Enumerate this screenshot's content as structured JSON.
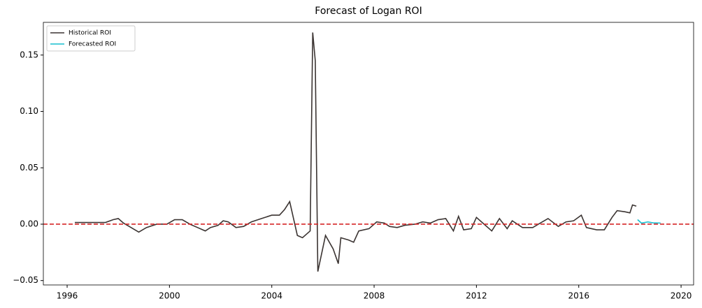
{
  "chart_data": {
    "type": "line",
    "title": "Forecast of Logan ROI",
    "series": [
      {
        "name": "Historical ROI",
        "color": "#3b3432",
        "x": [
          1996.3,
          1997.5,
          1997.8,
          1998.0,
          1998.2,
          1998.5,
          1998.8,
          1999.1,
          1999.5,
          1999.9,
          2000.2,
          2000.5,
          2000.8,
          2001.1,
          2001.4,
          2001.6,
          2001.9,
          2002.1,
          2002.3,
          2002.6,
          2002.9,
          2003.2,
          2003.6,
          2004.0,
          2004.3,
          2004.5,
          2004.7,
          2004.85,
          2005.0,
          2005.2,
          2005.5,
          2005.6,
          2005.7,
          2005.8,
          2006.1,
          2006.4,
          2006.6,
          2006.7,
          2007.0,
          2007.2,
          2007.4,
          2007.8,
          2008.1,
          2008.4,
          2008.6,
          2008.9,
          2009.2,
          2009.6,
          2009.9,
          2010.2,
          2010.5,
          2010.8,
          2011.1,
          2011.3,
          2011.5,
          2011.8,
          2012.0,
          2012.3,
          2012.6,
          2012.9,
          2013.2,
          2013.4,
          2013.8,
          2014.2,
          2014.5,
          2014.8,
          2015.2,
          2015.5,
          2015.8,
          2016.1,
          2016.3,
          2016.5,
          2016.7,
          2017.0,
          2017.3,
          2017.5,
          2017.8,
          2018.0,
          2018.1,
          2018.25
        ],
        "values": [
          0.0015,
          0.0015,
          0.004,
          0.005,
          0.001,
          -0.003,
          -0.007,
          -0.003,
          0.0,
          0.0,
          0.004,
          0.004,
          0.0,
          -0.003,
          -0.006,
          -0.003,
          -0.001,
          0.003,
          0.002,
          -0.003,
          -0.002,
          0.002,
          0.005,
          0.008,
          0.008,
          0.013,
          0.02,
          0.005,
          -0.01,
          -0.012,
          -0.006,
          0.17,
          0.145,
          -0.042,
          -0.01,
          -0.022,
          -0.035,
          -0.012,
          -0.014,
          -0.016,
          -0.006,
          -0.004,
          0.002,
          0.001,
          -0.002,
          -0.003,
          -0.001,
          0.0,
          0.002,
          0.001,
          0.004,
          0.005,
          -0.006,
          0.007,
          -0.005,
          -0.004,
          0.006,
          0.0,
          -0.006,
          0.005,
          -0.004,
          0.003,
          -0.003,
          -0.003,
          0.001,
          0.005,
          -0.002,
          0.002,
          0.003,
          0.008,
          -0.003,
          -0.004,
          -0.005,
          -0.005,
          0.006,
          0.012,
          0.011,
          0.01,
          0.017,
          0.016
        ]
      },
      {
        "name": "Forecasted ROI",
        "color": "#17becf",
        "x": [
          2018.3,
          2018.45,
          2018.7,
          2018.9,
          2019.2
        ],
        "values": [
          0.004,
          0.001,
          0.002,
          0.0012,
          0.001
        ]
      }
    ],
    "hline": 0,
    "hline_color": "#d62728",
    "xlim": [
      1995.07,
      2020.49
    ],
    "xticks": [
      1996,
      2000,
      2004,
      2008,
      2012,
      2016,
      2020
    ],
    "ylim": [
      -0.0539,
      0.179
    ],
    "yticks": [
      {
        "value": -0.05,
        "label": "−0.05"
      },
      {
        "value": 0,
        "label": "0.00"
      },
      {
        "value": 0.05,
        "label": "0.05"
      },
      {
        "value": 0.1,
        "label": "0.10"
      },
      {
        "value": 0.15,
        "label": "0.15"
      }
    ],
    "legend": "upper left",
    "grid": false
  }
}
